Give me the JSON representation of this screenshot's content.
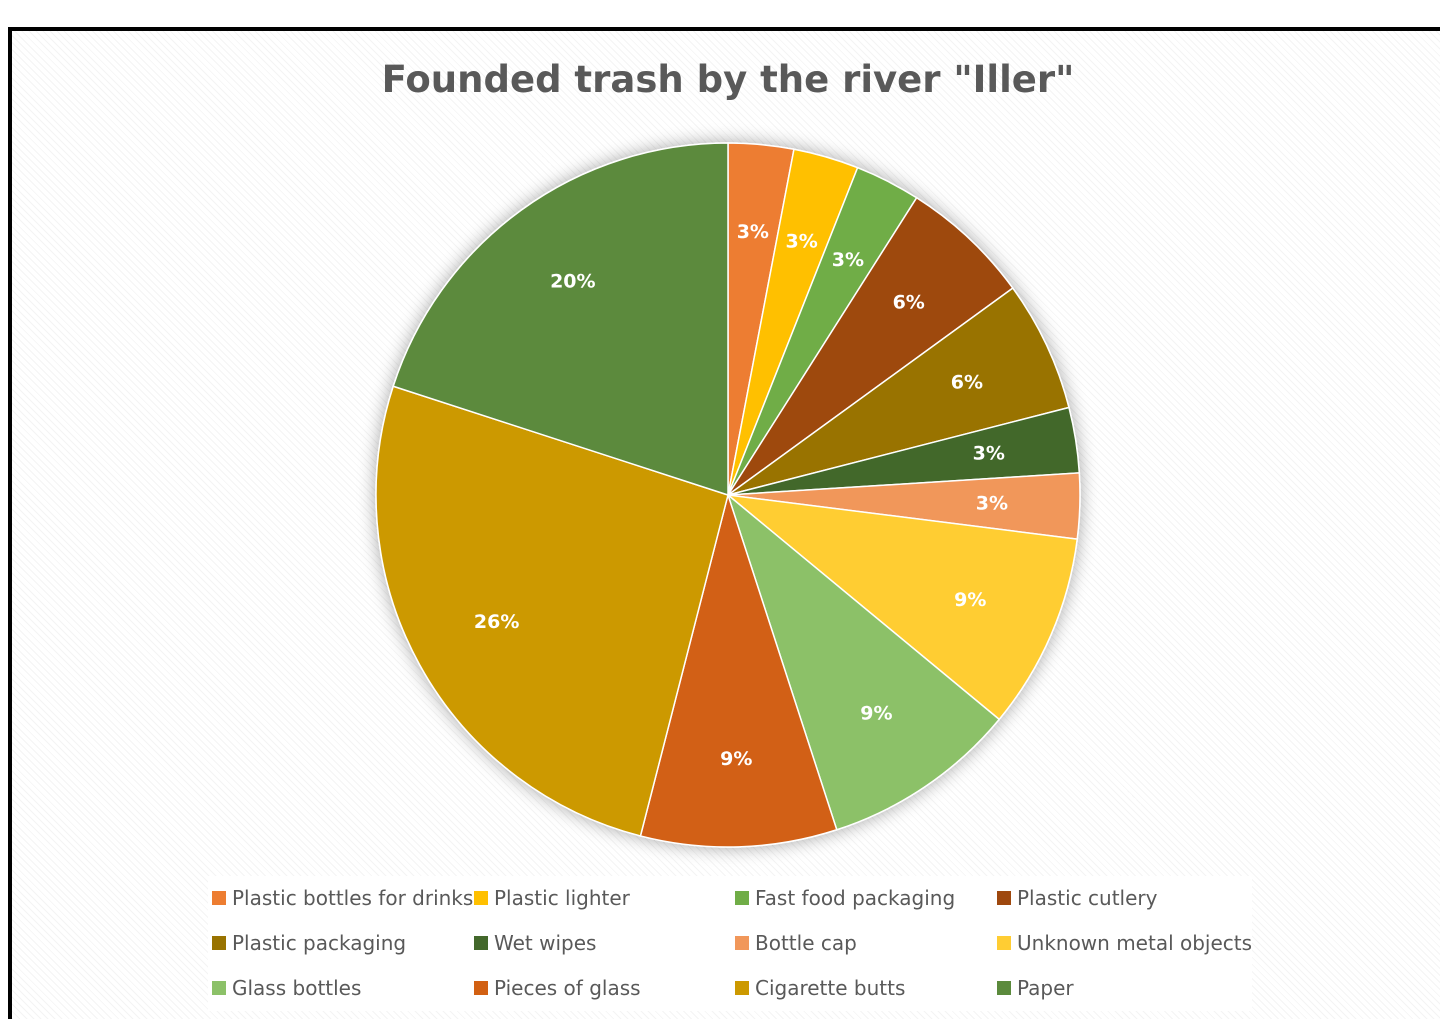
{
  "chart_data": {
    "type": "pie",
    "title": "Founded trash by the river \"Iller\"",
    "slices": [
      {
        "label": "Plastic bottles for drinks",
        "value": 3,
        "value_label": "3%",
        "color": "#ED7D31"
      },
      {
        "label": "Plastic lighter",
        "value": 3,
        "value_label": "3%",
        "color": "#FFC000"
      },
      {
        "label": "Fast food packaging",
        "value": 3,
        "value_label": "3%",
        "color": "#70AD47"
      },
      {
        "label": "Plastic cutlery",
        "value": 6,
        "value_label": "6%",
        "color": "#9E480E"
      },
      {
        "label": "Plastic packaging",
        "value": 6,
        "value_label": "6%",
        "color": "#997300"
      },
      {
        "label": "Wet wipes",
        "value": 3,
        "value_label": "3%",
        "color": "#43682B"
      },
      {
        "label": "Bottle cap",
        "value": 3,
        "value_label": "3%",
        "color": "#F1975A"
      },
      {
        "label": "Unknown metal objects",
        "value": 9,
        "value_label": "9%",
        "color": "#FFCD33"
      },
      {
        "label": "Glass bottles",
        "value": 9,
        "value_label": "9%",
        "color": "#8CC168"
      },
      {
        "label": "Pieces of glass",
        "value": 9,
        "value_label": "9%",
        "color": "#D26012"
      },
      {
        "label": "Cigarette butts",
        "value": 26,
        "value_label": "26%",
        "color": "#CC9900"
      },
      {
        "label": "Paper",
        "value": 20,
        "value_label": "20%",
        "color": "#5B8A3C"
      }
    ],
    "legend_position": "bottom",
    "data_labels": "inside"
  }
}
